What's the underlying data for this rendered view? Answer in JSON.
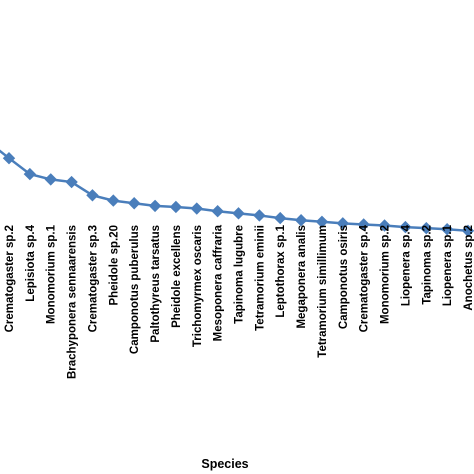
{
  "chart_data": {
    "type": "line",
    "title": "",
    "xlabel": "Species",
    "ylabel": "",
    "grid": false,
    "legend": "none",
    "series_color": "#4a7ebb",
    "marker": "diamond",
    "categories": [
      "Crematogaster sp.2",
      "Lepisiota sp.4",
      "Monomorium sp.1",
      "Brachyponera sennaarensis",
      "Crematogaster sp.3",
      "Pheidole sp.20",
      "Camponotus puberulus",
      "Paltothyreus tarsatus",
      "Pheidole excellens",
      "Trichomyrmex oscaris",
      "Mesoponera caffraria",
      "Tapinoma lugubre",
      "Tetramorium eminii",
      "Leptothorax sp.1",
      "Megaponera analis",
      "Tetramorium simillimum",
      "Camponotus osiris",
      "Crematogaster sp.4",
      "Monomorium sp.2",
      "Liopenera sp.4",
      "Tapinoma sp.2",
      "Liopenera sp.1",
      "Anochetus sp.2"
    ],
    "values": [
      16,
      13,
      12,
      11.5,
      9,
      8,
      7.5,
      7,
      6.8,
      6.5,
      6,
      5.6,
      5.2,
      4.7,
      4.3,
      4,
      3.7,
      3.5,
      3.3,
      3,
      2.8,
      2.6,
      2.3
    ],
    "ylim": [
      0,
      30
    ]
  }
}
